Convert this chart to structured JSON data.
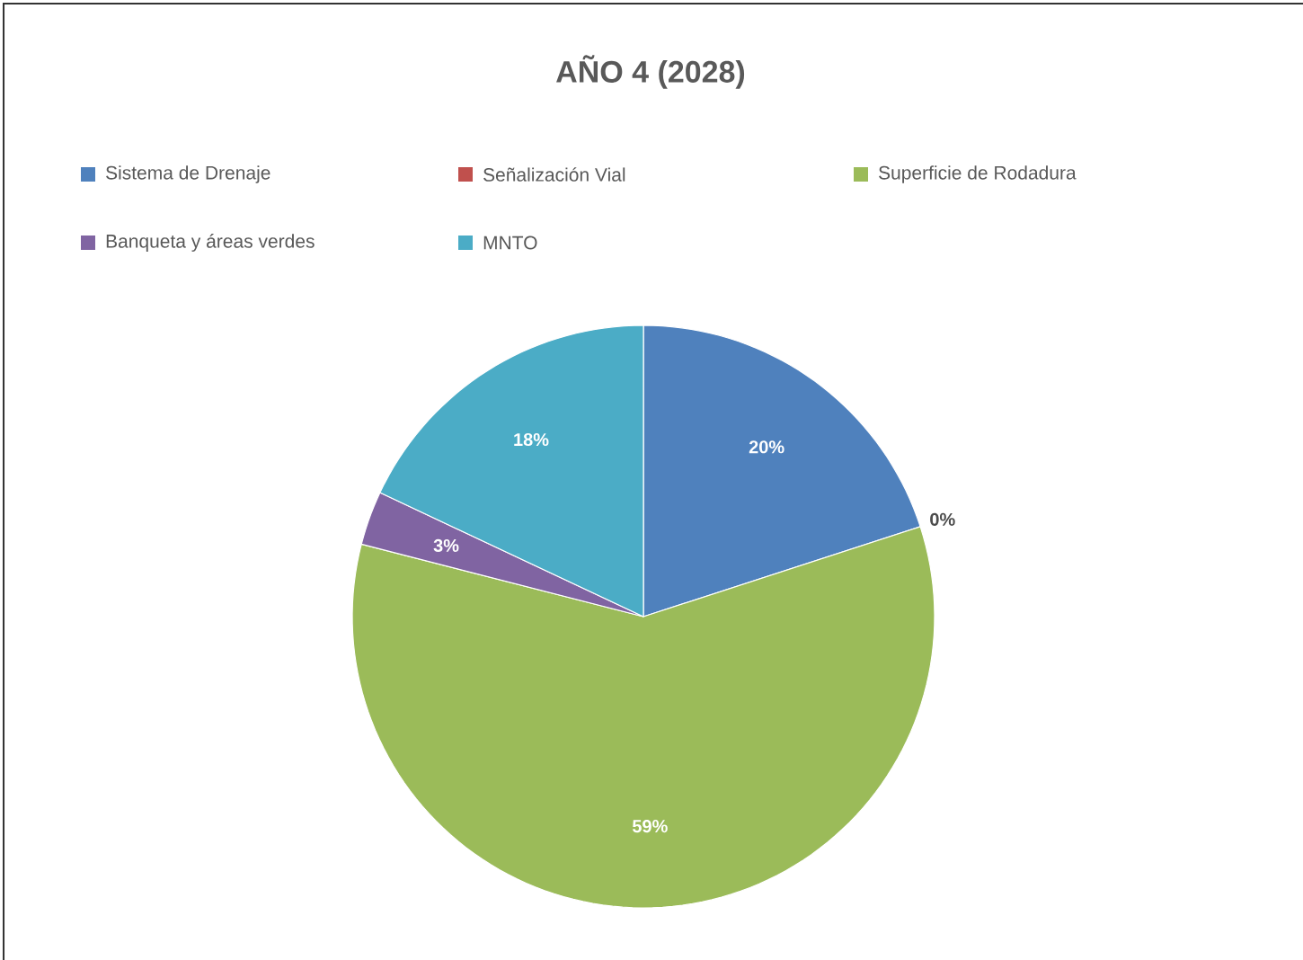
{
  "chart_data": {
    "type": "pie",
    "title": "AÑO 4 (2028)",
    "categories": [
      "Sistema de Drenaje",
      "Señalización Vial",
      "Superficie de Rodadura",
      "Banqueta y áreas verdes",
      "MNTO"
    ],
    "values": [
      20,
      0,
      59,
      3,
      18
    ],
    "colors": [
      "#4f81bd",
      "#c0504d",
      "#9bbb59",
      "#8064a2",
      "#4bacc6"
    ],
    "value_labels": [
      "20%",
      "0%",
      "59%",
      "3%",
      "18%"
    ],
    "legend": "top"
  }
}
